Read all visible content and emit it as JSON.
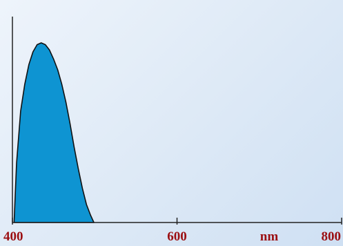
{
  "chart_data": {
    "type": "area",
    "title": "",
    "xlabel": "nm",
    "ylabel": "",
    "xlim": [
      400,
      800
    ],
    "ylim": [
      0,
      1
    ],
    "x_ticks": [
      400,
      600,
      800
    ],
    "x_tick_labels": [
      "400",
      "600",
      "800"
    ],
    "grid": false,
    "legend": "none",
    "series": [
      {
        "x": [
          402,
          405,
          410,
          415,
          420,
          425,
          430,
          435,
          440,
          445,
          450,
          455,
          460,
          465,
          470,
          475,
          480,
          485,
          490,
          495,
          498,
          499
        ],
        "y": [
          0.0,
          0.33,
          0.62,
          0.77,
          0.88,
          0.95,
          0.99,
          1.0,
          0.99,
          0.96,
          0.91,
          0.85,
          0.77,
          0.67,
          0.55,
          0.42,
          0.3,
          0.19,
          0.1,
          0.04,
          0.01,
          0.0
        ]
      }
    ],
    "colors": {
      "fill": "#0e94d2",
      "stroke": "#111111",
      "tick_label": "#9b0f12",
      "axis": "#222222"
    }
  }
}
